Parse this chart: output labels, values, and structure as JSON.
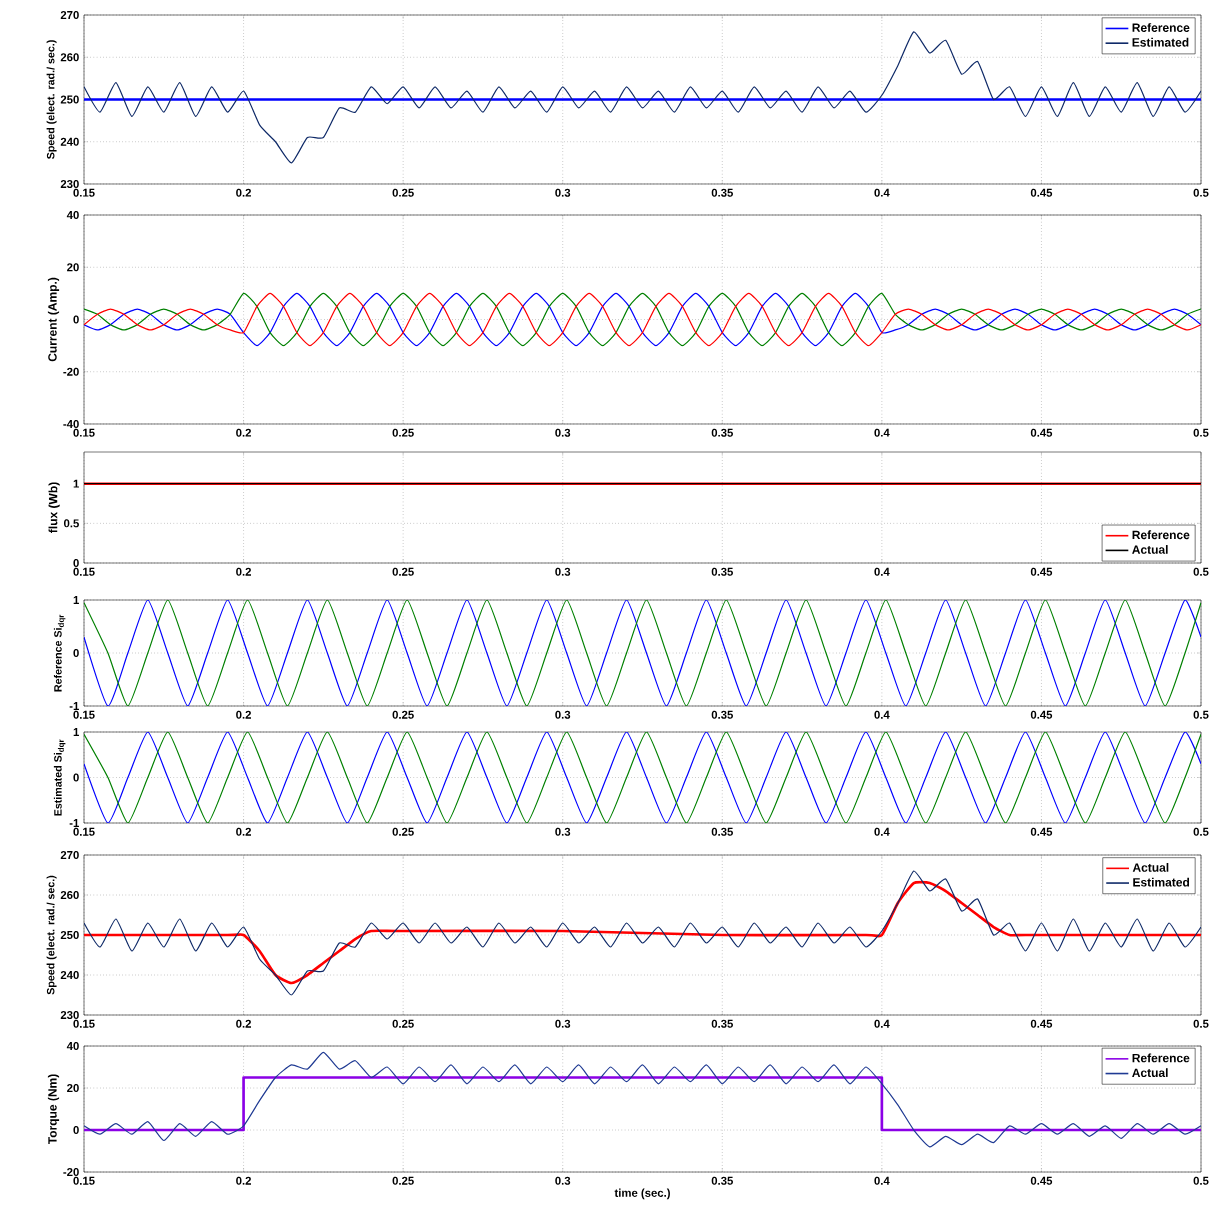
{
  "chart_data": [
    {
      "type": "line",
      "ylabel": "Speed (elect. rad./ sec.)",
      "xlim": [
        0.15,
        0.5
      ],
      "ylim": [
        230,
        270
      ],
      "xticks": [
        0.15,
        0.2,
        0.25,
        0.3,
        0.35,
        0.4,
        0.45,
        0.5
      ],
      "yticks": [
        230,
        240,
        250,
        260,
        270
      ],
      "grid": true,
      "legend": "top right",
      "series": [
        {
          "name": "Reference",
          "color": "#0000ff",
          "x": [
            0.15,
            0.5
          ],
          "values": [
            250,
            250
          ]
        },
        {
          "name": "Estimated",
          "color": "#0f2a68",
          "x": [
            0.15,
            0.155,
            0.16,
            0.165,
            0.17,
            0.175,
            0.18,
            0.185,
            0.19,
            0.195,
            0.2,
            0.205,
            0.21,
            0.215,
            0.22,
            0.225,
            0.23,
            0.235,
            0.24,
            0.245,
            0.25,
            0.255,
            0.26,
            0.265,
            0.27,
            0.275,
            0.28,
            0.285,
            0.29,
            0.295,
            0.3,
            0.305,
            0.31,
            0.315,
            0.32,
            0.325,
            0.33,
            0.335,
            0.34,
            0.345,
            0.35,
            0.355,
            0.36,
            0.365,
            0.37,
            0.375,
            0.38,
            0.385,
            0.39,
            0.395,
            0.4,
            0.405,
            0.41,
            0.415,
            0.42,
            0.425,
            0.43,
            0.435,
            0.44,
            0.445,
            0.45,
            0.455,
            0.46,
            0.465,
            0.47,
            0.475,
            0.48,
            0.485,
            0.49,
            0.495,
            0.5
          ],
          "values": [
            253,
            247,
            254,
            246,
            253,
            247,
            254,
            246,
            253,
            247,
            252,
            244,
            240,
            235,
            241,
            241,
            248,
            247,
            253,
            249,
            253,
            248,
            253,
            248,
            252,
            247,
            253,
            248,
            252,
            247,
            253,
            248,
            252,
            247,
            253,
            248,
            252,
            247,
            253,
            248,
            252,
            247,
            253,
            248,
            252,
            247,
            253,
            248,
            252,
            247,
            251,
            258,
            266,
            261,
            264,
            256,
            259,
            250,
            253,
            246,
            253,
            246,
            254,
            246,
            253,
            247,
            254,
            246,
            253,
            247,
            252
          ]
        }
      ]
    },
    {
      "type": "line",
      "ylabel": "Current (Amp.)",
      "xlim": [
        0.15,
        0.5
      ],
      "ylim": [
        -40,
        40
      ],
      "xticks": [
        0.15,
        0.2,
        0.25,
        0.3,
        0.35,
        0.4,
        0.45,
        0.5
      ],
      "yticks": [
        -40,
        -20,
        0,
        20,
        40
      ],
      "grid": true,
      "x": [
        0.15,
        0.1542,
        0.1583,
        0.1625,
        0.1667,
        0.1708,
        0.175,
        0.1792,
        0.1833,
        0.1875,
        0.1917,
        0.1958,
        0.2,
        0.2042,
        0.2083,
        0.2125,
        0.2167,
        0.2208,
        0.225,
        0.2292,
        0.2333,
        0.2375,
        0.2417,
        0.2458,
        0.25,
        0.2542,
        0.2583,
        0.2625,
        0.2667,
        0.2708,
        0.275,
        0.2792,
        0.2833,
        0.2875,
        0.2917,
        0.2958,
        0.3,
        0.3042,
        0.3083,
        0.3125,
        0.3167,
        0.3208,
        0.325,
        0.3292,
        0.3333,
        0.3375,
        0.3417,
        0.3458,
        0.35,
        0.3542,
        0.3583,
        0.3625,
        0.3667,
        0.3708,
        0.375,
        0.3792,
        0.3833,
        0.3875,
        0.3917,
        0.3958,
        0.4,
        0.4042,
        0.4083,
        0.4125,
        0.4167,
        0.4208,
        0.425,
        0.4292,
        0.4333,
        0.4375,
        0.4417,
        0.4458,
        0.45,
        0.4542,
        0.4583,
        0.4625,
        0.4667,
        0.4708,
        0.475,
        0.4792,
        0.4833,
        0.4875,
        0.4917,
        0.4958,
        0.5
      ],
      "series": [
        {
          "color": "#0000ff",
          "values": [
            -2,
            -4,
            -2,
            2,
            4,
            2,
            -2,
            -4,
            -2,
            2,
            4,
            2,
            -5,
            -10,
            -5,
            5,
            10,
            5,
            -5,
            -10,
            -5,
            5,
            10,
            5,
            -5,
            -10,
            -5,
            5,
            10,
            5,
            -5,
            -10,
            -5,
            5,
            10,
            5,
            -5,
            -10,
            -5,
            5,
            10,
            5,
            -5,
            -10,
            -5,
            5,
            10,
            5,
            -5,
            -10,
            -5,
            5,
            10,
            5,
            -5,
            -10,
            -5,
            5,
            10,
            5,
            -5,
            -4,
            -2,
            2,
            4,
            2,
            -2,
            -4,
            -2,
            2,
            4,
            2,
            -2,
            -4,
            -2,
            2,
            4,
            2,
            -2,
            -4,
            -2,
            2,
            4,
            2,
            -2
          ]
        },
        {
          "color": "#008000",
          "values": [
            4,
            2,
            -2,
            -4,
            -2,
            2,
            4,
            2,
            -2,
            -4,
            -2,
            2,
            10,
            5,
            -5,
            -10,
            -5,
            5,
            10,
            5,
            -5,
            -10,
            -5,
            5,
            10,
            5,
            -5,
            -10,
            -5,
            5,
            10,
            5,
            -5,
            -10,
            -5,
            5,
            10,
            5,
            -5,
            -10,
            -5,
            5,
            10,
            5,
            -5,
            -10,
            -5,
            5,
            10,
            5,
            -5,
            -10,
            -5,
            5,
            10,
            5,
            -5,
            -10,
            -5,
            5,
            10,
            2,
            -2,
            -4,
            -2,
            2,
            4,
            2,
            -2,
            -4,
            -2,
            2,
            4,
            2,
            -2,
            -4,
            -2,
            2,
            4,
            2,
            -2,
            -4,
            -2,
            2,
            4
          ]
        },
        {
          "color": "#ff0000",
          "values": [
            -2,
            2,
            4,
            2,
            -2,
            -4,
            -2,
            2,
            4,
            2,
            -2,
            -4,
            -5,
            5,
            10,
            5,
            -5,
            -10,
            -5,
            5,
            10,
            5,
            -5,
            -10,
            -5,
            5,
            10,
            5,
            -5,
            -10,
            -5,
            5,
            10,
            5,
            -5,
            -10,
            -5,
            5,
            10,
            5,
            -5,
            -10,
            -5,
            5,
            10,
            5,
            -5,
            -10,
            -5,
            5,
            10,
            5,
            -5,
            -10,
            -5,
            5,
            10,
            5,
            -5,
            -10,
            -5,
            2,
            4,
            2,
            -2,
            -4,
            -2,
            2,
            4,
            2,
            -2,
            -4,
            -2,
            2,
            4,
            2,
            -2,
            -4,
            -2,
            2,
            4,
            2,
            -2,
            -4,
            -2
          ]
        }
      ]
    },
    {
      "type": "line",
      "ylabel": "flux (Wb)",
      "xlim": [
        0.15,
        0.5
      ],
      "ylim": [
        0,
        1.4
      ],
      "xticks": [
        0.15,
        0.2,
        0.25,
        0.3,
        0.35,
        0.4,
        0.45,
        0.5
      ],
      "yticks": [
        0,
        0.5,
        1
      ],
      "grid": true,
      "legend": "bottom right",
      "series": [
        {
          "name": "Reference",
          "color": "#ff0000",
          "x": [
            0.15,
            0.5
          ],
          "values": [
            1,
            1
          ]
        },
        {
          "name": "Actual",
          "color": "#000000",
          "x": [
            0.15,
            0.5
          ],
          "values": [
            1,
            1
          ]
        }
      ]
    },
    {
      "type": "line",
      "ylabel": "Reference Si$_{dqr}$",
      "xlim": [
        0.15,
        0.5
      ],
      "ylim": [
        -1,
        1
      ],
      "xticks": [
        0.15,
        0.2,
        0.25,
        0.3,
        0.35,
        0.4,
        0.45,
        0.5
      ],
      "yticks": [
        -1,
        0,
        1
      ],
      "grid": true,
      "x": [
        0.15,
        0.1575,
        0.16375,
        0.17,
        0.17625,
        0.1825,
        0.18875,
        0.195,
        0.20125,
        0.2075,
        0.21375,
        0.22,
        0.22625,
        0.2325,
        0.23875,
        0.245,
        0.25125,
        0.2575,
        0.26375,
        0.27,
        0.27625,
        0.2825,
        0.28875,
        0.295,
        0.30125,
        0.3075,
        0.31375,
        0.32,
        0.32625,
        0.3325,
        0.33875,
        0.345,
        0.35125,
        0.3575,
        0.36375,
        0.37,
        0.37625,
        0.3825,
        0.38875,
        0.395,
        0.40125,
        0.4075,
        0.41375,
        0.42,
        0.42625,
        0.4325,
        0.43875,
        0.445,
        0.45125,
        0.4575,
        0.46375,
        0.47,
        0.47625,
        0.4825,
        0.48875,
        0.495,
        0.5
      ],
      "series": [
        {
          "color": "#0000ff",
          "values": [
            0.3,
            -1,
            0,
            1,
            0,
            -1,
            0,
            1,
            0,
            -1,
            0,
            1,
            0,
            -1,
            0,
            1,
            0,
            -1,
            0,
            1,
            0,
            -1,
            0,
            1,
            0,
            -1,
            0,
            1,
            0,
            -1,
            0,
            1,
            0,
            -1,
            0,
            1,
            0,
            -1,
            0,
            1,
            0,
            -1,
            0,
            1,
            0,
            -1,
            0,
            1,
            0,
            -1,
            0,
            1,
            0,
            -1,
            0,
            1,
            0.3
          ]
        },
        {
          "color": "#008000",
          "values": [
            0.95,
            0,
            -1,
            0,
            1,
            0,
            -1,
            0,
            1,
            0,
            -1,
            0,
            1,
            0,
            -1,
            0,
            1,
            0,
            -1,
            0,
            1,
            0,
            -1,
            0,
            1,
            0,
            -1,
            0,
            1,
            0,
            -1,
            0,
            1,
            0,
            -1,
            0,
            1,
            0,
            -1,
            0,
            1,
            0,
            -1,
            0,
            1,
            0,
            -1,
            0,
            1,
            0,
            -1,
            0,
            1,
            0,
            -1,
            0,
            0.95
          ]
        }
      ]
    },
    {
      "type": "line",
      "ylabel": "Estimated Si$_{dqr}$",
      "xlim": [
        0.15,
        0.5
      ],
      "ylim": [
        -1,
        1
      ],
      "xticks": [
        0.15,
        0.2,
        0.25,
        0.3,
        0.35,
        0.4,
        0.45,
        0.5
      ],
      "yticks": [
        -1,
        0,
        1
      ],
      "grid": true,
      "x": [
        0.15,
        0.1575,
        0.16375,
        0.17,
        0.17625,
        0.1825,
        0.18875,
        0.195,
        0.20125,
        0.2075,
        0.21375,
        0.22,
        0.22625,
        0.2325,
        0.23875,
        0.245,
        0.25125,
        0.2575,
        0.26375,
        0.27,
        0.27625,
        0.2825,
        0.28875,
        0.295,
        0.30125,
        0.3075,
        0.31375,
        0.32,
        0.32625,
        0.3325,
        0.33875,
        0.345,
        0.35125,
        0.3575,
        0.36375,
        0.37,
        0.37625,
        0.3825,
        0.38875,
        0.395,
        0.40125,
        0.4075,
        0.41375,
        0.42,
        0.42625,
        0.4325,
        0.43875,
        0.445,
        0.45125,
        0.4575,
        0.46375,
        0.47,
        0.47625,
        0.4825,
        0.48875,
        0.495,
        0.5
      ],
      "series": [
        {
          "color": "#0000ff",
          "values": [
            0.3,
            -1,
            0,
            1,
            0,
            -1,
            0,
            1,
            0,
            -1,
            0,
            1,
            0,
            -1,
            0,
            1,
            0,
            -1,
            0,
            1,
            0,
            -1,
            0,
            1,
            0,
            -1,
            0,
            1,
            0,
            -1,
            0,
            1,
            0,
            -1,
            0,
            1,
            0,
            -1,
            0,
            1,
            0,
            -1,
            0,
            1,
            0,
            -1,
            0,
            1,
            0,
            -1,
            0,
            1,
            0,
            -1,
            0,
            1,
            0.3
          ]
        },
        {
          "color": "#008000",
          "values": [
            0.95,
            0,
            -1,
            0,
            1,
            0,
            -1,
            0,
            1,
            0,
            -1,
            0,
            1,
            0,
            -1,
            0,
            1,
            0,
            -1,
            0,
            1,
            0,
            -1,
            0,
            1,
            0,
            -1,
            0,
            1,
            0,
            -1,
            0,
            1,
            0,
            -1,
            0,
            1,
            0,
            -1,
            0,
            1,
            0,
            -1,
            0,
            1,
            0,
            -1,
            0,
            1,
            0,
            -1,
            0,
            1,
            0,
            -1,
            0,
            0.95
          ]
        }
      ]
    },
    {
      "type": "line",
      "ylabel": "Speed (elect. rad./ sec.)",
      "xlim": [
        0.15,
        0.5
      ],
      "ylim": [
        230,
        270
      ],
      "xticks": [
        0.15,
        0.2,
        0.25,
        0.3,
        0.35,
        0.4,
        0.45,
        0.5
      ],
      "yticks": [
        230,
        240,
        250,
        260,
        270
      ],
      "grid": true,
      "legend": "top right",
      "series": [
        {
          "name": "Actual",
          "color": "#ff0000",
          "x": [
            0.15,
            0.195,
            0.2,
            0.205,
            0.21,
            0.215,
            0.22,
            0.225,
            0.23,
            0.235,
            0.24,
            0.25,
            0.3,
            0.35,
            0.395,
            0.4,
            0.405,
            0.41,
            0.415,
            0.42,
            0.425,
            0.43,
            0.435,
            0.44,
            0.445,
            0.5
          ],
          "values": [
            250,
            250,
            250,
            246,
            240,
            238,
            240,
            243,
            246,
            249,
            251,
            251,
            251,
            250,
            250,
            250,
            258,
            263,
            263,
            261,
            258,
            255,
            252,
            250,
            250,
            250
          ]
        },
        {
          "name": "Estimated",
          "color": "#0f2a68",
          "x": [
            0.15,
            0.155,
            0.16,
            0.165,
            0.17,
            0.175,
            0.18,
            0.185,
            0.19,
            0.195,
            0.2,
            0.205,
            0.21,
            0.215,
            0.22,
            0.225,
            0.23,
            0.235,
            0.24,
            0.245,
            0.25,
            0.255,
            0.26,
            0.265,
            0.27,
            0.275,
            0.28,
            0.285,
            0.29,
            0.295,
            0.3,
            0.305,
            0.31,
            0.315,
            0.32,
            0.325,
            0.33,
            0.335,
            0.34,
            0.345,
            0.35,
            0.355,
            0.36,
            0.365,
            0.37,
            0.375,
            0.38,
            0.385,
            0.39,
            0.395,
            0.4,
            0.405,
            0.41,
            0.415,
            0.42,
            0.425,
            0.43,
            0.435,
            0.44,
            0.445,
            0.45,
            0.455,
            0.46,
            0.465,
            0.47,
            0.475,
            0.48,
            0.485,
            0.49,
            0.495,
            0.5
          ],
          "values": [
            253,
            247,
            254,
            246,
            253,
            247,
            254,
            246,
            253,
            247,
            252,
            244,
            240,
            235,
            241,
            241,
            248,
            247,
            253,
            249,
            253,
            248,
            253,
            248,
            252,
            247,
            253,
            248,
            252,
            247,
            253,
            248,
            252,
            247,
            253,
            248,
            252,
            247,
            253,
            248,
            252,
            247,
            253,
            248,
            252,
            247,
            253,
            248,
            252,
            247,
            251,
            258,
            266,
            261,
            264,
            256,
            259,
            250,
            253,
            246,
            253,
            246,
            254,
            246,
            253,
            247,
            254,
            246,
            253,
            247,
            252
          ]
        }
      ]
    },
    {
      "type": "line",
      "ylabel": "Torque (Nm)",
      "xlabel": "time (sec.)",
      "xlim": [
        0.15,
        0.5
      ],
      "ylim": [
        -20,
        40
      ],
      "xticks": [
        0.15,
        0.2,
        0.25,
        0.3,
        0.35,
        0.4,
        0.45,
        0.5
      ],
      "yticks": [
        -20,
        0,
        20,
        40
      ],
      "grid": true,
      "legend": "top right",
      "series": [
        {
          "name": "Reference",
          "type": "step",
          "color": "#8b00e6",
          "x": [
            0.15,
            0.2,
            0.4,
            0.5
          ],
          "values": [
            0,
            25,
            0,
            0
          ]
        },
        {
          "name": "Actual",
          "color": "#1f3a93",
          "x": [
            0.15,
            0.155,
            0.16,
            0.165,
            0.17,
            0.175,
            0.18,
            0.185,
            0.19,
            0.195,
            0.2,
            0.205,
            0.21,
            0.215,
            0.22,
            0.225,
            0.23,
            0.235,
            0.24,
            0.245,
            0.25,
            0.255,
            0.26,
            0.265,
            0.27,
            0.275,
            0.28,
            0.285,
            0.29,
            0.295,
            0.3,
            0.305,
            0.31,
            0.315,
            0.32,
            0.325,
            0.33,
            0.335,
            0.34,
            0.345,
            0.35,
            0.355,
            0.36,
            0.365,
            0.37,
            0.375,
            0.38,
            0.385,
            0.39,
            0.395,
            0.4,
            0.405,
            0.41,
            0.415,
            0.42,
            0.425,
            0.43,
            0.435,
            0.44,
            0.445,
            0.45,
            0.455,
            0.46,
            0.465,
            0.47,
            0.475,
            0.48,
            0.485,
            0.49,
            0.495,
            0.5
          ],
          "values": [
            2,
            -2,
            3,
            -2,
            4,
            -5,
            3,
            -3,
            4,
            -2,
            2,
            14,
            25,
            31,
            29,
            37,
            29,
            33,
            25,
            30,
            22,
            30,
            23,
            31,
            22,
            30,
            23,
            31,
            22,
            30,
            23,
            31,
            22,
            30,
            23,
            31,
            22,
            30,
            23,
            31,
            22,
            30,
            23,
            31,
            22,
            30,
            23,
            31,
            22,
            30,
            22,
            12,
            0,
            -8,
            -3,
            -7,
            -2,
            -6,
            2,
            -2,
            3,
            -2,
            3,
            -3,
            2,
            -4,
            3,
            -2,
            3,
            -2,
            2
          ]
        }
      ]
    }
  ]
}
